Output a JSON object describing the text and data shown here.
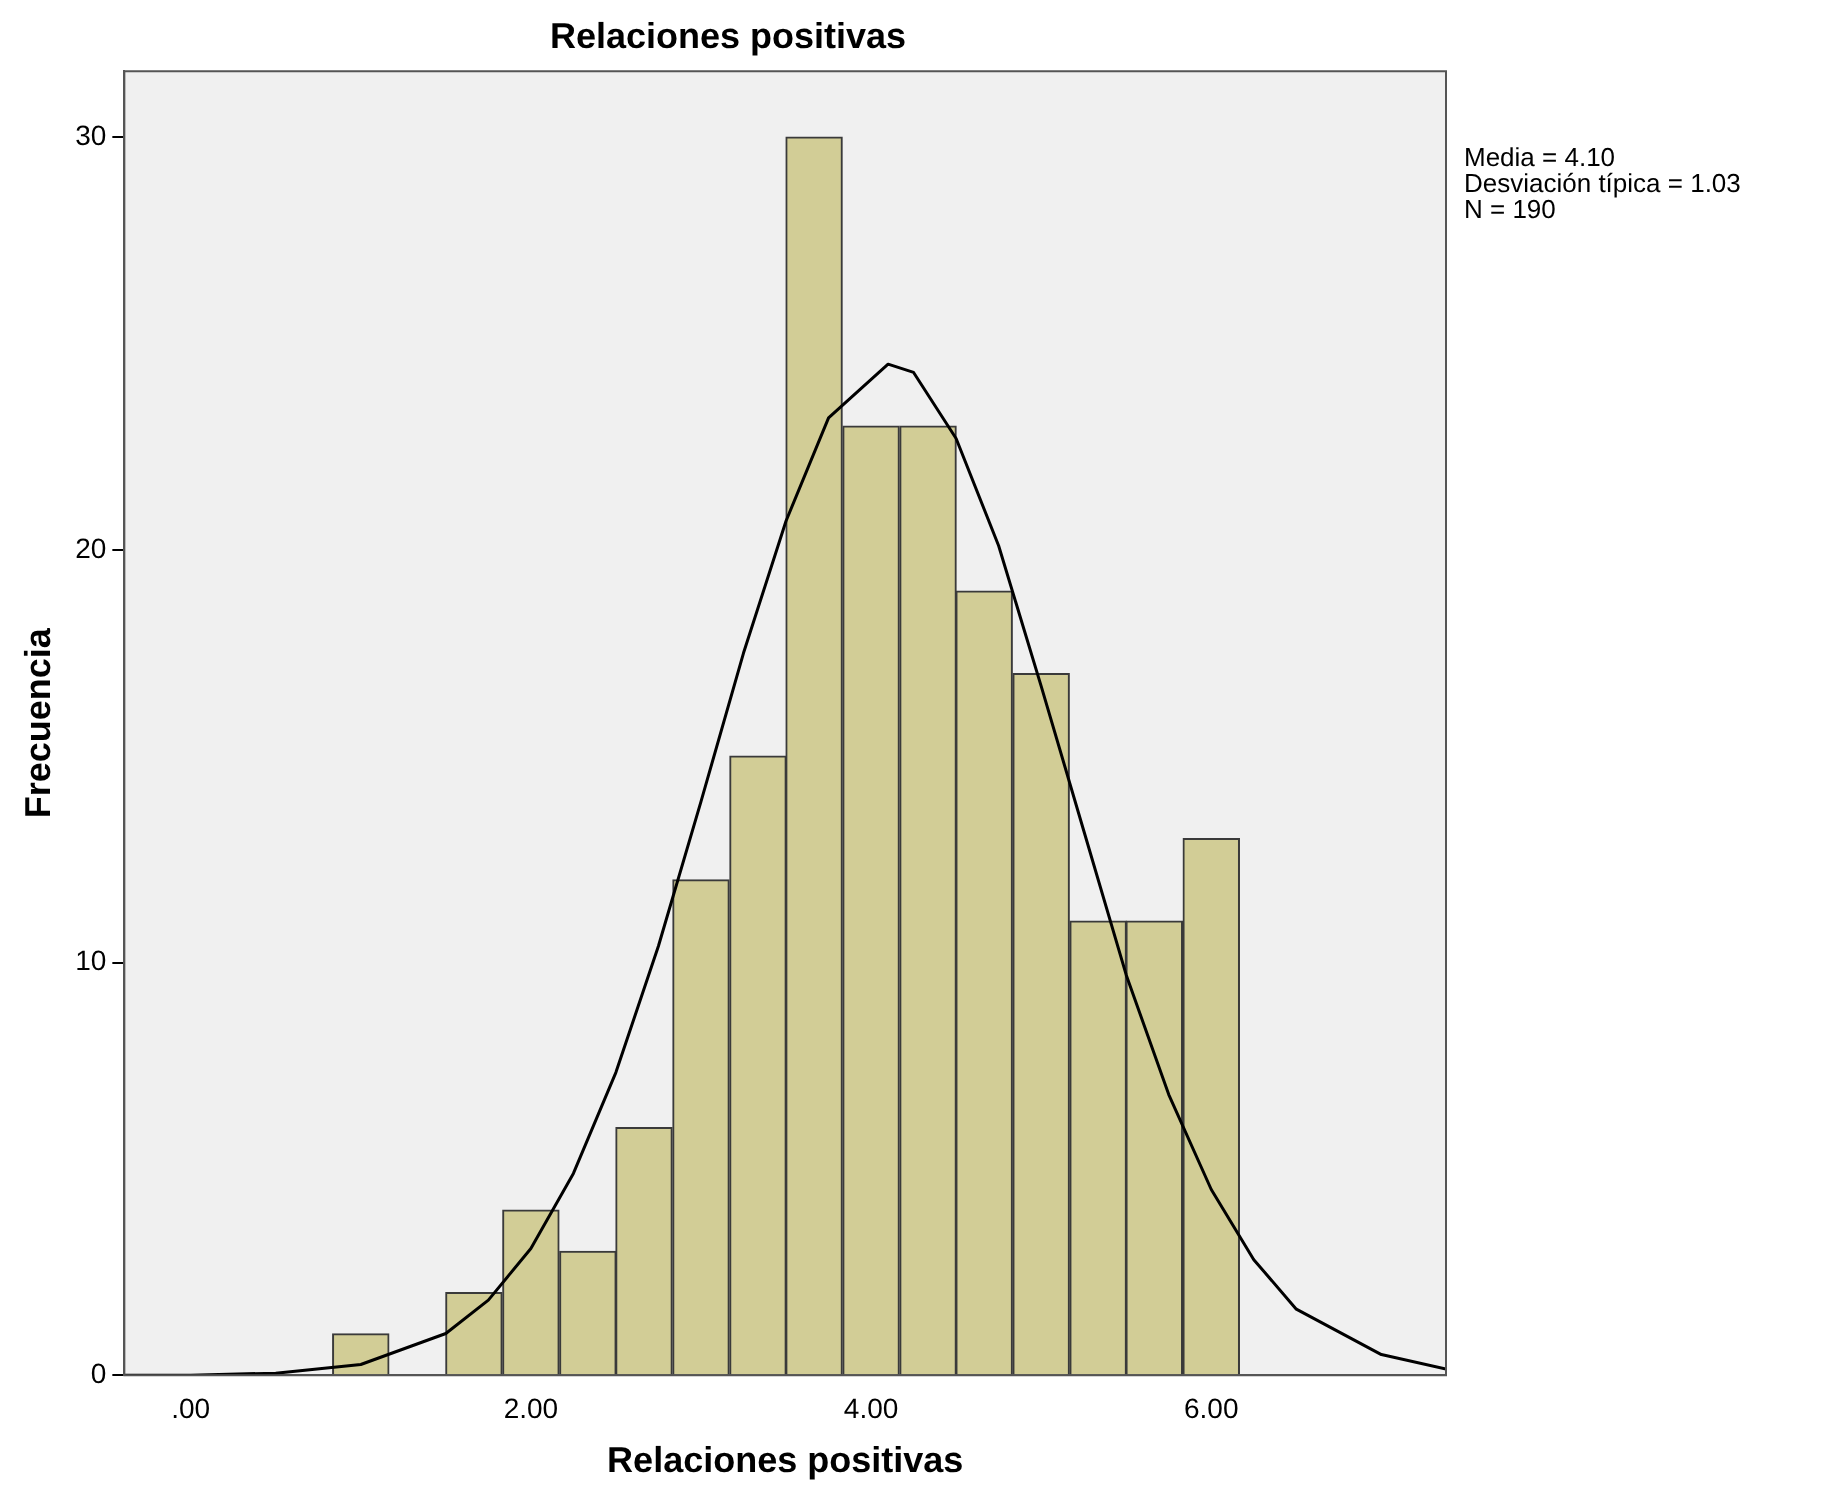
{
  "chart_data": {
    "type": "histogram",
    "title": "Relaciones positivas",
    "xlabel": "Relaciones positivas",
    "ylabel": "Frecuencia",
    "bins": [
      0.83,
      1.17,
      1.5,
      1.83,
      2.17,
      2.5,
      2.83,
      3.17,
      3.5,
      3.83,
      4.17,
      4.5,
      4.83,
      5.17,
      5.5,
      5.83,
      6.17
    ],
    "values": [
      1,
      0,
      2,
      4,
      3,
      6,
      12,
      15,
      30,
      23,
      23,
      19,
      17,
      11,
      11,
      13
    ],
    "color": "#d2cd96",
    "series": [
      {
        "type": "line",
        "color": "#000000",
        "x": [
          -0.39,
          0,
          0.5,
          1,
          1.5,
          1.75,
          2,
          2.25,
          2.5,
          2.75,
          3,
          3.25,
          3.5,
          3.75,
          4.1,
          4.25,
          4.5,
          4.75,
          5,
          5.25,
          5.5,
          5.75,
          6,
          6.25,
          6.5,
          7,
          7.38
        ],
        "values": [
          0,
          0,
          0.05,
          0.26,
          1.01,
          1.82,
          3.07,
          4.89,
          7.34,
          10.4,
          13.9,
          17.5,
          20.7,
          23.2,
          24.5,
          24.3,
          22.7,
          20.1,
          16.7,
          13.2,
          9.7,
          6.8,
          4.5,
          2.8,
          1.6,
          0.5,
          0.15
        ]
      }
    ],
    "xlim": [
      -0.39,
      7.38
    ],
    "xticks": [
      {
        "value": 0,
        "label": ".00"
      },
      {
        "value": 2,
        "label": "2.00"
      },
      {
        "value": 4,
        "label": "4.00"
      },
      {
        "value": 6,
        "label": "6.00"
      }
    ],
    "ylim": [
      0,
      31.6
    ],
    "yticks": [
      0,
      10,
      20,
      30
    ],
    "grid": false,
    "legend": false,
    "annotations": [
      "Media = 4.10",
      "Desviación típica = 1.03",
      "N = 190"
    ]
  }
}
